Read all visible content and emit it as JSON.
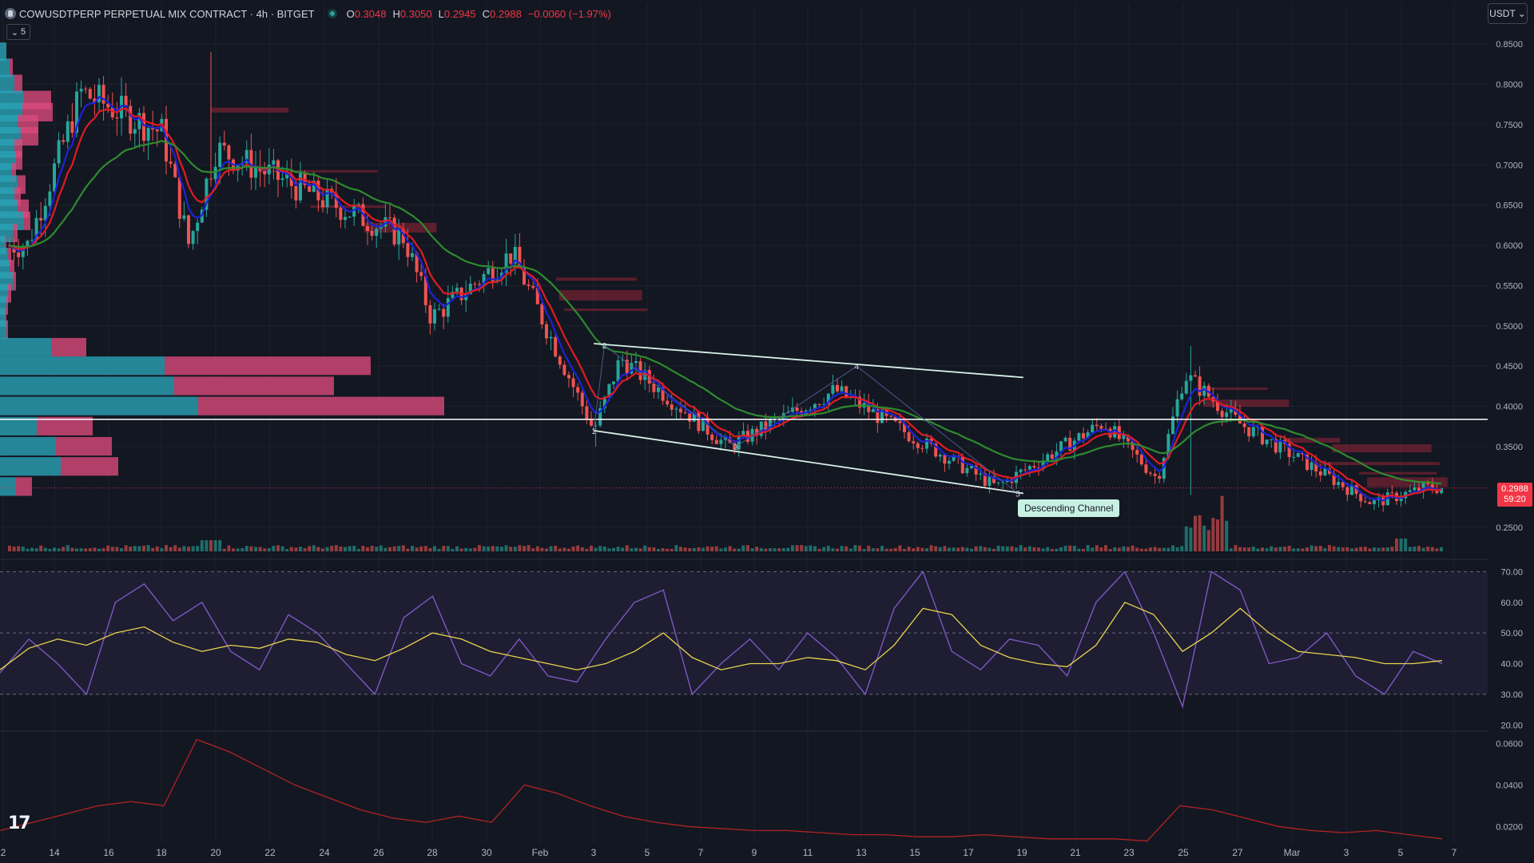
{
  "header": {
    "symbol_title": "COWUSDTPERP PERPETUAL MIX CONTRACT · 4h · BITGET",
    "open_key": "O",
    "open": "0.3048",
    "high_key": "H",
    "high": "0.3050",
    "low_key": "L",
    "low": "0.2945",
    "close_key": "C",
    "close": "0.2988",
    "change": "−0.0060 (−1.97%)",
    "collapse_count": "5",
    "currency": "USDT"
  },
  "last_price": {
    "price": "0.2988",
    "countdown": "59:20"
  },
  "drawing": {
    "channel_label": "Descending Channel",
    "wave_labels": [
      "1",
      "2",
      "3",
      "4",
      "5"
    ]
  },
  "colors": {
    "background": "#131722",
    "up": "#26a69a",
    "down": "#ef5350",
    "ema_fast": "#1e22d6",
    "ema_mid": "#e01b24",
    "ema_slow": "#2e8b2e",
    "rsi": "#7e57c2",
    "rsi_ma": "#e8d44d",
    "vol_blue": "#2aa3b7",
    "vol_pink": "#d94a7a"
  },
  "chart_data": [
    {
      "type": "candlestick",
      "title": "COWUSDTPERP PERPETUAL MIX CONTRACT · 4h · BITGET",
      "ylim": [
        0.22,
        0.87
      ],
      "price_ticks": [
        "0.8500",
        "0.8000",
        "0.7500",
        "0.7000",
        "0.6500",
        "0.6000",
        "0.5500",
        "0.5000",
        "0.4500",
        "0.4000",
        "0.3500",
        "0.2500"
      ],
      "x_ticks": [
        "2",
        "14",
        "16",
        "18",
        "20",
        "22",
        "24",
        "26",
        "28",
        "30",
        "Feb",
        "3",
        "5",
        "7",
        "9",
        "11",
        "13",
        "15",
        "17",
        "19",
        "21",
        "23",
        "25",
        "27",
        "Mar",
        "3",
        "5",
        "7"
      ],
      "horizontal_line": 0.384,
      "last_price": 0.2988,
      "key_points": [
        {
          "date": "Jan 13",
          "price": 0.6
        },
        {
          "date": "Jan 15",
          "price": 0.79
        },
        {
          "date": "Jan 18",
          "price": 0.74
        },
        {
          "date": "Jan 19",
          "price": 0.6
        },
        {
          "date": "Jan 20",
          "price": 0.72
        },
        {
          "date": "Jan 27",
          "price": 0.61
        },
        {
          "date": "Jan 28",
          "price": 0.51
        },
        {
          "date": "Jan 31",
          "price": 0.59
        },
        {
          "date": "Feb 3",
          "price": 0.37
        },
        {
          "date": "Feb 4",
          "price": 0.46
        },
        {
          "date": "Feb 8",
          "price": 0.35
        },
        {
          "date": "Feb 12",
          "price": 0.42
        },
        {
          "date": "Feb 18",
          "price": 0.3
        },
        {
          "date": "Feb 22",
          "price": 0.38
        },
        {
          "date": "Feb 24",
          "price": 0.31
        },
        {
          "date": "Feb 25",
          "price": 0.44
        },
        {
          "date": "Feb 27",
          "price": 0.38
        },
        {
          "date": "Mar 1",
          "price": 0.34
        },
        {
          "date": "Mar 4",
          "price": 0.28
        },
        {
          "date": "Mar 6",
          "price": 0.2988
        }
      ],
      "descending_channel": {
        "upper": [
          {
            "date": "Feb 3",
            "price": 0.478
          },
          {
            "date": "Feb 19",
            "price": 0.436
          }
        ],
        "lower": [
          {
            "date": "Feb 3",
            "price": 0.37
          },
          {
            "date": "Feb 19",
            "price": 0.292
          }
        ]
      }
    },
    {
      "type": "line",
      "title": "RSI",
      "ylim": [
        18,
        74
      ],
      "ticks": [
        "70.00",
        "60.00",
        "50.00",
        "40.00",
        "30.00",
        "20.00"
      ],
      "band": [
        30,
        70
      ],
      "series": [
        {
          "values": [
            37,
            48,
            40,
            30,
            60,
            66,
            54,
            60,
            44,
            38,
            56,
            50,
            40,
            30,
            55,
            62,
            40,
            36,
            48,
            36,
            34,
            48,
            60,
            64,
            30,
            40,
            48,
            38,
            50,
            42,
            30,
            58,
            70,
            44,
            38,
            48,
            46,
            36,
            60,
            70,
            50,
            26,
            70,
            64,
            40,
            42,
            50,
            36,
            30,
            44,
            40
          ]
        },
        {
          "values": [
            38,
            45,
            48,
            46,
            50,
            52,
            47,
            44,
            46,
            45,
            48,
            47,
            43,
            41,
            45,
            50,
            48,
            44,
            42,
            40,
            38,
            40,
            44,
            50,
            42,
            38,
            40,
            40,
            42,
            41,
            38,
            46,
            58,
            56,
            46,
            42,
            40,
            39,
            46,
            60,
            56,
            44,
            50,
            58,
            50,
            44,
            43,
            42,
            40,
            40,
            41
          ]
        }
      ]
    },
    {
      "type": "line",
      "ylim": [
        0.012,
        0.066
      ],
      "ticks": [
        "0.0600",
        "0.0400",
        "0.0200"
      ],
      "series": [
        {
          "values": [
            0.018,
            0.022,
            0.026,
            0.03,
            0.032,
            0.03,
            0.062,
            0.056,
            0.048,
            0.04,
            0.034,
            0.028,
            0.024,
            0.022,
            0.025,
            0.022,
            0.04,
            0.036,
            0.03,
            0.025,
            0.022,
            0.02,
            0.019,
            0.018,
            0.018,
            0.017,
            0.016,
            0.016,
            0.015,
            0.015,
            0.016,
            0.015,
            0.014,
            0.014,
            0.014,
            0.013,
            0.03,
            0.028,
            0.024,
            0.02,
            0.018,
            0.017,
            0.018,
            0.016,
            0.014
          ]
        }
      ]
    }
  ]
}
